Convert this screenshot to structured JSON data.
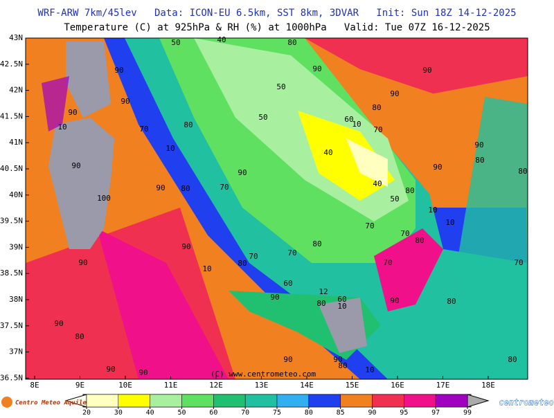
{
  "header": {
    "line1": "WRF-ARW 7km/45lev   Data: ICON-EU 6.5km, SST 8km, 3DVAR   Init: Sun 18Z 14-12-2025",
    "line2": "Temperature (C) at 925hPa & RH (%) at 1000hPa   Valid: Tue 07Z 16-12-2025"
  },
  "map": {
    "lat_labels": [
      "43N",
      "42.5N",
      "42N",
      "41.5N",
      "41N",
      "40.5N",
      "40N",
      "39.5N",
      "39N",
      "38.5N",
      "38N",
      "37.5N",
      "37N",
      "36.5N"
    ],
    "lon_labels": [
      "8E",
      "9E",
      "10E",
      "11E",
      "12E",
      "13E",
      "14E",
      "15E",
      "16E",
      "17E",
      "18E"
    ],
    "contour_labels": [
      "50",
      "40",
      "80",
      "90",
      "90",
      "90",
      "50",
      "90",
      "90",
      "80",
      "90",
      "50",
      "60",
      "10",
      "10",
      "70",
      "80",
      "70",
      "10",
      "90",
      "40",
      "90",
      "80",
      "90",
      "90",
      "80",
      "40",
      "90",
      "80",
      "70",
      "80",
      "100",
      "50",
      "10",
      "10",
      "70",
      "70",
      "80",
      "80",
      "90",
      "70",
      "70",
      "90",
      "80",
      "70",
      "10",
      "70",
      "60",
      "12",
      "90",
      "60",
      "80",
      "10",
      "90",
      "80",
      "90",
      "80",
      "90",
      "90",
      "80",
      "90",
      "90",
      "10",
      "80"
    ],
    "copyright": "(C) www.centrometeo.com"
  },
  "colorbar": {
    "ticks": [
      20,
      30,
      40,
      50,
      60,
      70,
      75,
      80,
      85,
      90,
      95,
      97,
      99
    ],
    "colors": [
      "#ffffc0",
      "#ffff00",
      "#a8f0a0",
      "#60e060",
      "#20c070",
      "#20c0a0",
      "#30b0f0",
      "#2040f0",
      "#f08020",
      "#f03050",
      "#f0108a",
      "#a000c0"
    ]
  },
  "logos": {
    "left": "Centro Meteo Aquileo",
    "right": "centrometeo"
  }
}
